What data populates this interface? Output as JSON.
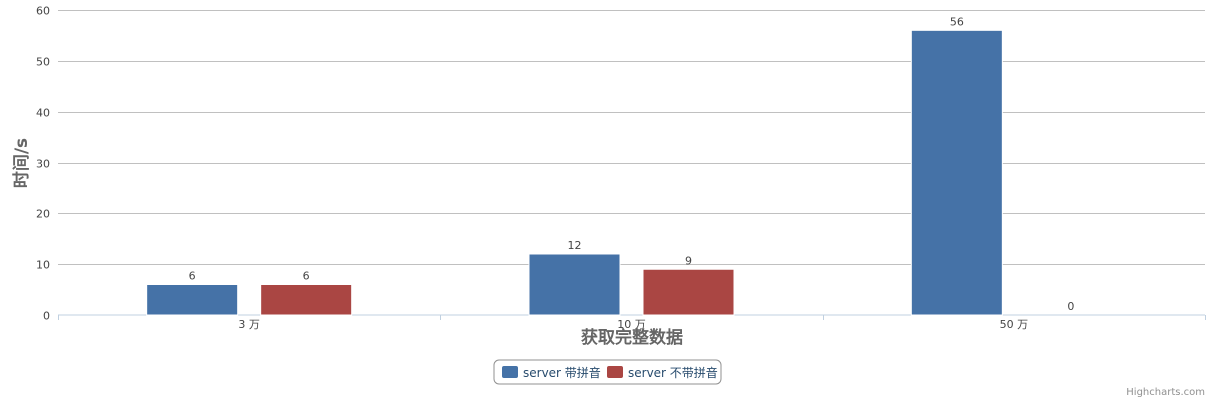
{
  "chart_data": {
    "type": "bar",
    "categories": [
      "3 万",
      "10 万",
      "50 万"
    ],
    "series": [
      {
        "name": "server 带拼音",
        "color": "#4572A7",
        "values": [
          6,
          12,
          56
        ]
      },
      {
        "name": "server 不带拼音",
        "color": "#AA4643",
        "values": [
          6,
          9,
          0
        ]
      }
    ],
    "title": "",
    "xlabel": "获取完整数据",
    "ylabel": "时间/s",
    "ylim": [
      0,
      60
    ],
    "yticks": [
      "0",
      "10",
      "20",
      "30",
      "40",
      "50",
      "60"
    ],
    "grid": true,
    "legend_position": "bottom-center",
    "credits": "Highcharts.com"
  }
}
